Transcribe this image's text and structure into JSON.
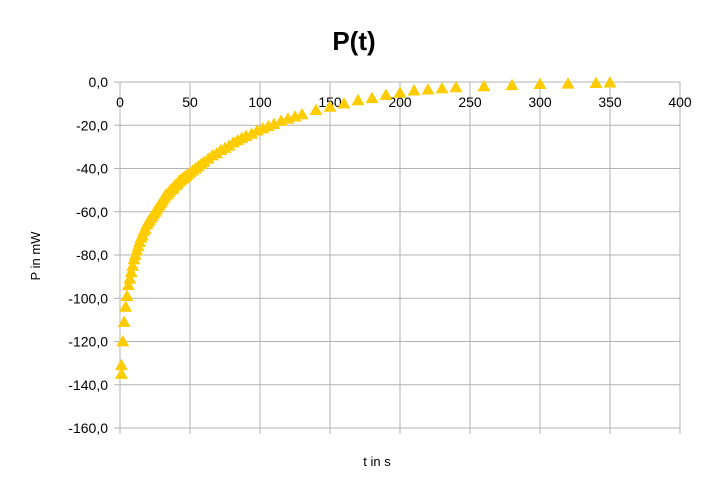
{
  "chart_data": {
    "type": "scatter",
    "title": "P(t)",
    "xlabel": "t in s",
    "ylabel": "P in mW",
    "xlim": [
      0,
      400
    ],
    "ylim": [
      -160,
      0
    ],
    "x_ticks": [
      "0",
      "50",
      "100",
      "150",
      "200",
      "250",
      "300",
      "350",
      "400"
    ],
    "y_ticks": [
      "0,0",
      "-20,0",
      "-40,0",
      "-60,0",
      "-80,0",
      "-100,0",
      "-120,0",
      "-140,0",
      "-160,0"
    ],
    "grid": true,
    "legend": "none",
    "marker": "triangle",
    "color": "#ffcc00",
    "series": [
      {
        "x": [
          1,
          1,
          2,
          3,
          4,
          5,
          6,
          7,
          8,
          9,
          10,
          11,
          12,
          13,
          14,
          15,
          16,
          17,
          18,
          19,
          20,
          21,
          22,
          23,
          24,
          25,
          26,
          27,
          28,
          29,
          30,
          31,
          32,
          33,
          34,
          35,
          36,
          37,
          38,
          39,
          40,
          41,
          42,
          43,
          44,
          45,
          46,
          47,
          48,
          50,
          52,
          54,
          56,
          58,
          60,
          63,
          66,
          69,
          72,
          75,
          78,
          81,
          84,
          87,
          90,
          94,
          98,
          102,
          106,
          110,
          115,
          120,
          125,
          130,
          140,
          150,
          160,
          170,
          180,
          190,
          200,
          210,
          220,
          230,
          240,
          260,
          280,
          300,
          320,
          340,
          350
        ],
        "y": [
          -135,
          -131,
          -120,
          -111,
          -104,
          -99,
          -94,
          -91,
          -88,
          -85,
          -82,
          -80,
          -78,
          -76,
          -74,
          -72,
          -71,
          -69,
          -68,
          -66,
          -65,
          -64,
          -63,
          -62,
          -61,
          -60,
          -59,
          -58,
          -57,
          -56,
          -55,
          -54,
          -53,
          -52,
          -52,
          -51,
          -50,
          -49.5,
          -49,
          -48,
          -47.5,
          -47,
          -46,
          -45.5,
          -45,
          -44.5,
          -44,
          -43.5,
          -43,
          -42,
          -41,
          -40,
          -39,
          -38,
          -37,
          -35.5,
          -34,
          -33,
          -31.5,
          -30.5,
          -29.5,
          -28,
          -27,
          -26,
          -25,
          -24,
          -22.5,
          -21.5,
          -20.5,
          -19.5,
          -18,
          -17,
          -16,
          -15,
          -13,
          -11.5,
          -10,
          -8.5,
          -7.5,
          -6,
          -5,
          -4,
          -3.5,
          -3,
          -2.5,
          -2,
          -1.5,
          -1,
          -0.8,
          -0.5,
          -0.3
        ]
      }
    ]
  }
}
